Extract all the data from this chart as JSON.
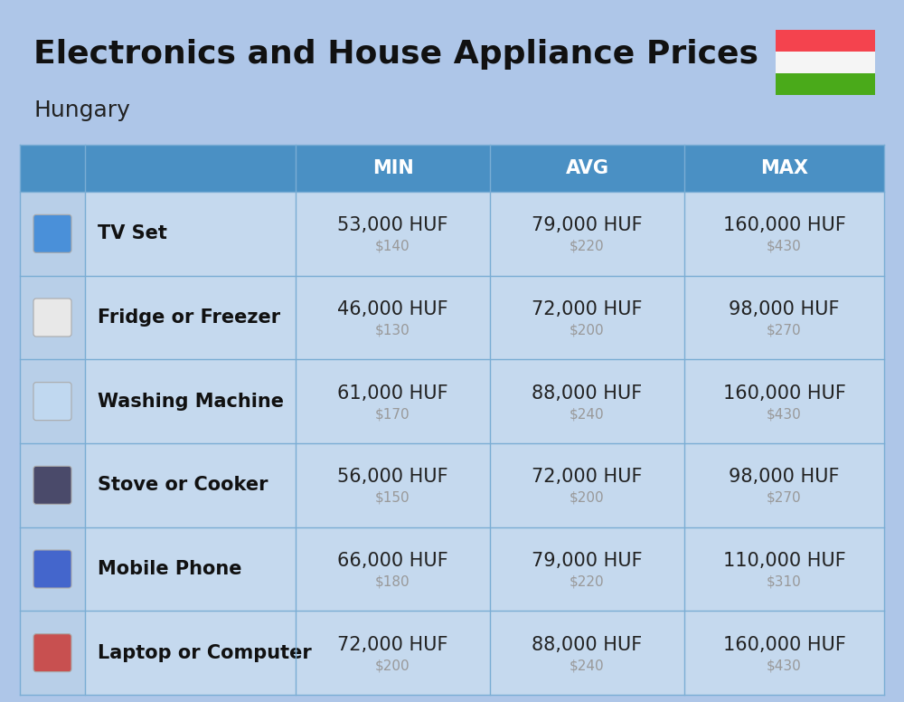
{
  "title": "Electronics and House Appliance Prices",
  "subtitle": "Hungary",
  "bg_color": "#aec6e8",
  "header_color": "#4a90c4",
  "header_text_color": "#ffffff",
  "row_bg_color": "#c5d9ee",
  "separator_color": "#7aadd4",
  "icon_col_color": "#b8cfe8",
  "name_col_color": "#c5d9ee",
  "columns": [
    "MIN",
    "AVG",
    "MAX"
  ],
  "rows": [
    {
      "name": "TV Set",
      "min_huf": "53,000 HUF",
      "min_usd": "$140",
      "avg_huf": "79,000 HUF",
      "avg_usd": "$220",
      "max_huf": "160,000 HUF",
      "max_usd": "$430"
    },
    {
      "name": "Fridge or Freezer",
      "min_huf": "46,000 HUF",
      "min_usd": "$130",
      "avg_huf": "72,000 HUF",
      "avg_usd": "$200",
      "max_huf": "98,000 HUF",
      "max_usd": "$270"
    },
    {
      "name": "Washing Machine",
      "min_huf": "61,000 HUF",
      "min_usd": "$170",
      "avg_huf": "88,000 HUF",
      "avg_usd": "$240",
      "max_huf": "160,000 HUF",
      "max_usd": "$430"
    },
    {
      "name": "Stove or Cooker",
      "min_huf": "56,000 HUF",
      "min_usd": "$150",
      "avg_huf": "72,000 HUF",
      "avg_usd": "$200",
      "max_huf": "98,000 HUF",
      "max_usd": "$270"
    },
    {
      "name": "Mobile Phone",
      "min_huf": "66,000 HUF",
      "min_usd": "$180",
      "avg_huf": "79,000 HUF",
      "avg_usd": "$220",
      "max_huf": "110,000 HUF",
      "max_usd": "$310"
    },
    {
      "name": "Laptop or Computer",
      "min_huf": "72,000 HUF",
      "min_usd": "$200",
      "avg_huf": "88,000 HUF",
      "avg_usd": "$240",
      "max_huf": "160,000 HUF",
      "max_usd": "$430"
    }
  ],
  "hungary_flag_colors": [
    "#f4434e",
    "#f5f5f5",
    "#4aaa1a"
  ],
  "title_fontsize": 26,
  "subtitle_fontsize": 18,
  "header_fontsize": 15,
  "item_name_fontsize": 15,
  "price_huf_fontsize": 15,
  "price_usd_fontsize": 11
}
